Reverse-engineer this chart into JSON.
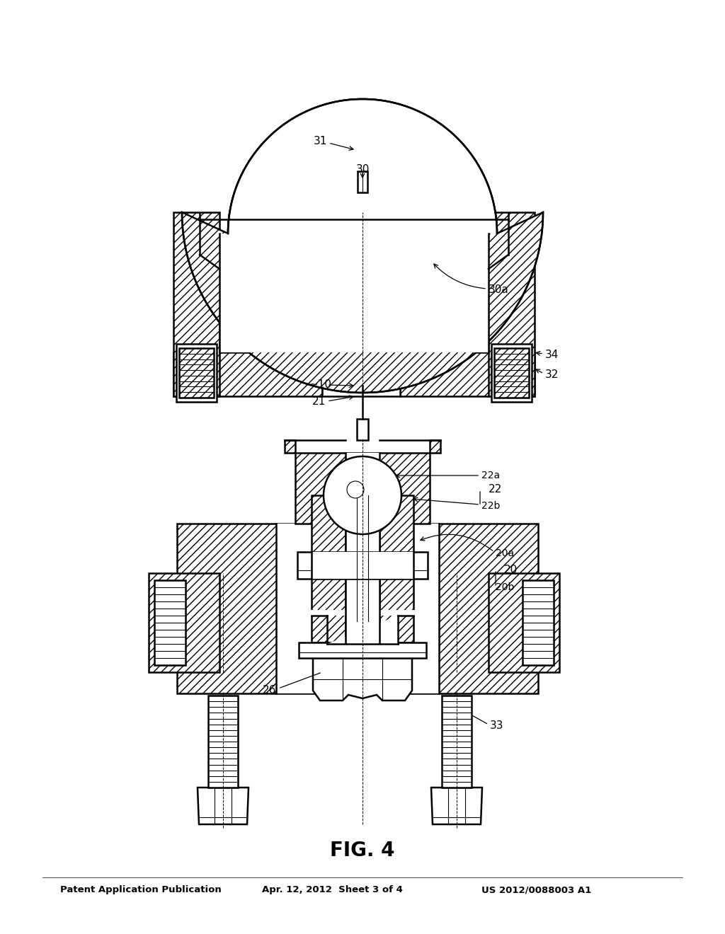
{
  "title": "FIG. 4",
  "header_left": "Patent Application Publication",
  "header_mid": "Apr. 12, 2012  Sheet 3 of 4",
  "header_right": "US 2012/0088003 A1",
  "bg_color": "#ffffff",
  "line_color": "#000000",
  "lw_main": 1.8,
  "lw_thin": 0.8,
  "hatch_density": "///",
  "fig_width": 10.24,
  "fig_height": 13.2,
  "dpi": 100
}
